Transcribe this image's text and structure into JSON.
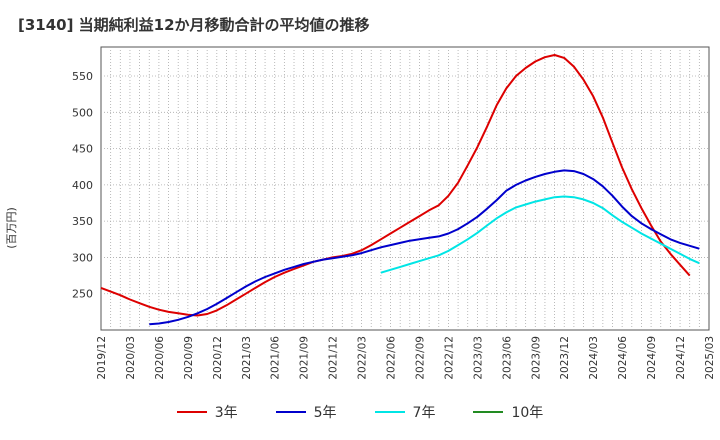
{
  "chart_data": {
    "type": "line",
    "title": "[3140]  当期純利益12か月移動合計の平均値の推移",
    "ylabel": "(百万円)",
    "xlabel": "",
    "yticks": [
      250,
      300,
      350,
      400,
      450,
      500,
      550
    ],
    "ylim": [
      200,
      590
    ],
    "xlim": [
      "2019-12",
      "2025-03"
    ],
    "xticks": [
      "2019/12",
      "2020/03",
      "2020/06",
      "2020/09",
      "2020/12",
      "2021/03",
      "2021/06",
      "2021/09",
      "2021/12",
      "2022/03",
      "2022/06",
      "2022/09",
      "2022/12",
      "2023/03",
      "2023/06",
      "2023/09",
      "2023/12",
      "2024/03",
      "2024/06",
      "2024/09",
      "2024/12",
      "2025/03"
    ],
    "grid": true,
    "legend_position": "bottom",
    "series": [
      {
        "name": "3年",
        "color": "#dd0000",
        "points": [
          [
            "2019-12",
            258
          ],
          [
            "2020-01",
            253
          ],
          [
            "2020-02",
            248
          ],
          [
            "2020-03",
            242
          ],
          [
            "2020-04",
            237
          ],
          [
            "2020-05",
            232
          ],
          [
            "2020-06",
            228
          ],
          [
            "2020-07",
            225
          ],
          [
            "2020-08",
            223
          ],
          [
            "2020-09",
            221
          ],
          [
            "2020-10",
            220
          ],
          [
            "2020-11",
            222
          ],
          [
            "2020-12",
            227
          ],
          [
            "2021-01",
            234
          ],
          [
            "2021-02",
            242
          ],
          [
            "2021-03",
            250
          ],
          [
            "2021-04",
            258
          ],
          [
            "2021-05",
            266
          ],
          [
            "2021-06",
            273
          ],
          [
            "2021-07",
            279
          ],
          [
            "2021-08",
            284
          ],
          [
            "2021-09",
            289
          ],
          [
            "2021-10",
            294
          ],
          [
            "2021-11",
            297
          ],
          [
            "2021-12",
            300
          ],
          [
            "2022-01",
            302
          ],
          [
            "2022-02",
            305
          ],
          [
            "2022-03",
            310
          ],
          [
            "2022-04",
            317
          ],
          [
            "2022-05",
            325
          ],
          [
            "2022-06",
            333
          ],
          [
            "2022-07",
            341
          ],
          [
            "2022-08",
            349
          ],
          [
            "2022-09",
            357
          ],
          [
            "2022-10",
            365
          ],
          [
            "2022-11",
            372
          ],
          [
            "2022-12",
            385
          ],
          [
            "2023-01",
            403
          ],
          [
            "2023-02",
            427
          ],
          [
            "2023-03",
            452
          ],
          [
            "2023-04",
            480
          ],
          [
            "2023-05",
            510
          ],
          [
            "2023-06",
            533
          ],
          [
            "2023-07",
            550
          ],
          [
            "2023-08",
            561
          ],
          [
            "2023-09",
            570
          ],
          [
            "2023-10",
            576
          ],
          [
            "2023-11",
            579
          ],
          [
            "2023-12",
            575
          ],
          [
            "2024-01",
            563
          ],
          [
            "2024-02",
            545
          ],
          [
            "2024-03",
            522
          ],
          [
            "2024-04",
            493
          ],
          [
            "2024-05",
            458
          ],
          [
            "2024-06",
            424
          ],
          [
            "2024-07",
            394
          ],
          [
            "2024-08",
            368
          ],
          [
            "2024-09",
            344
          ],
          [
            "2024-10",
            322
          ],
          [
            "2024-11",
            305
          ],
          [
            "2024-12",
            290
          ],
          [
            "2025-01",
            275
          ]
        ]
      },
      {
        "name": "5年",
        "color": "#0000cc",
        "points": [
          [
            "2020-05",
            208
          ],
          [
            "2020-06",
            209
          ],
          [
            "2020-07",
            211
          ],
          [
            "2020-08",
            214
          ],
          [
            "2020-09",
            218
          ],
          [
            "2020-10",
            223
          ],
          [
            "2020-11",
            229
          ],
          [
            "2020-12",
            236
          ],
          [
            "2021-01",
            244
          ],
          [
            "2021-02",
            252
          ],
          [
            "2021-03",
            260
          ],
          [
            "2021-04",
            267
          ],
          [
            "2021-05",
            273
          ],
          [
            "2021-06",
            278
          ],
          [
            "2021-07",
            283
          ],
          [
            "2021-08",
            287
          ],
          [
            "2021-09",
            291
          ],
          [
            "2021-10",
            294
          ],
          [
            "2021-11",
            297
          ],
          [
            "2021-12",
            299
          ],
          [
            "2022-01",
            301
          ],
          [
            "2022-02",
            303
          ],
          [
            "2022-03",
            306
          ],
          [
            "2022-04",
            310
          ],
          [
            "2022-05",
            314
          ],
          [
            "2022-06",
            317
          ],
          [
            "2022-07",
            320
          ],
          [
            "2022-08",
            323
          ],
          [
            "2022-09",
            325
          ],
          [
            "2022-10",
            327
          ],
          [
            "2022-11",
            329
          ],
          [
            "2022-12",
            333
          ],
          [
            "2023-01",
            339
          ],
          [
            "2023-02",
            347
          ],
          [
            "2023-03",
            356
          ],
          [
            "2023-04",
            367
          ],
          [
            "2023-05",
            379
          ],
          [
            "2023-06",
            392
          ],
          [
            "2023-07",
            400
          ],
          [
            "2023-08",
            406
          ],
          [
            "2023-09",
            411
          ],
          [
            "2023-10",
            415
          ],
          [
            "2023-11",
            418
          ],
          [
            "2023-12",
            420
          ],
          [
            "2024-01",
            419
          ],
          [
            "2024-02",
            415
          ],
          [
            "2024-03",
            408
          ],
          [
            "2024-04",
            398
          ],
          [
            "2024-05",
            385
          ],
          [
            "2024-06",
            370
          ],
          [
            "2024-07",
            357
          ],
          [
            "2024-08",
            347
          ],
          [
            "2024-09",
            339
          ],
          [
            "2024-10",
            332
          ],
          [
            "2024-11",
            325
          ],
          [
            "2024-12",
            320
          ],
          [
            "2025-01",
            316
          ],
          [
            "2025-02",
            312
          ]
        ]
      },
      {
        "name": "7年",
        "color": "#00e5e5",
        "points": [
          [
            "2022-05",
            279
          ],
          [
            "2022-06",
            283
          ],
          [
            "2022-07",
            287
          ],
          [
            "2022-08",
            291
          ],
          [
            "2022-09",
            295
          ],
          [
            "2022-10",
            299
          ],
          [
            "2022-11",
            303
          ],
          [
            "2022-12",
            309
          ],
          [
            "2023-01",
            317
          ],
          [
            "2023-02",
            325
          ],
          [
            "2023-03",
            334
          ],
          [
            "2023-04",
            344
          ],
          [
            "2023-05",
            354
          ],
          [
            "2023-06",
            362
          ],
          [
            "2023-07",
            369
          ],
          [
            "2023-08",
            373
          ],
          [
            "2023-09",
            377
          ],
          [
            "2023-10",
            380
          ],
          [
            "2023-11",
            383
          ],
          [
            "2023-12",
            384
          ],
          [
            "2024-01",
            383
          ],
          [
            "2024-02",
            380
          ],
          [
            "2024-03",
            375
          ],
          [
            "2024-04",
            368
          ],
          [
            "2024-05",
            358
          ],
          [
            "2024-06",
            349
          ],
          [
            "2024-07",
            341
          ],
          [
            "2024-08",
            333
          ],
          [
            "2024-09",
            326
          ],
          [
            "2024-10",
            319
          ],
          [
            "2024-11",
            312
          ],
          [
            "2024-12",
            305
          ],
          [
            "2025-01",
            298
          ],
          [
            "2025-02",
            292
          ]
        ]
      },
      {
        "name": "10年",
        "color": "#228b22",
        "points": []
      }
    ]
  }
}
